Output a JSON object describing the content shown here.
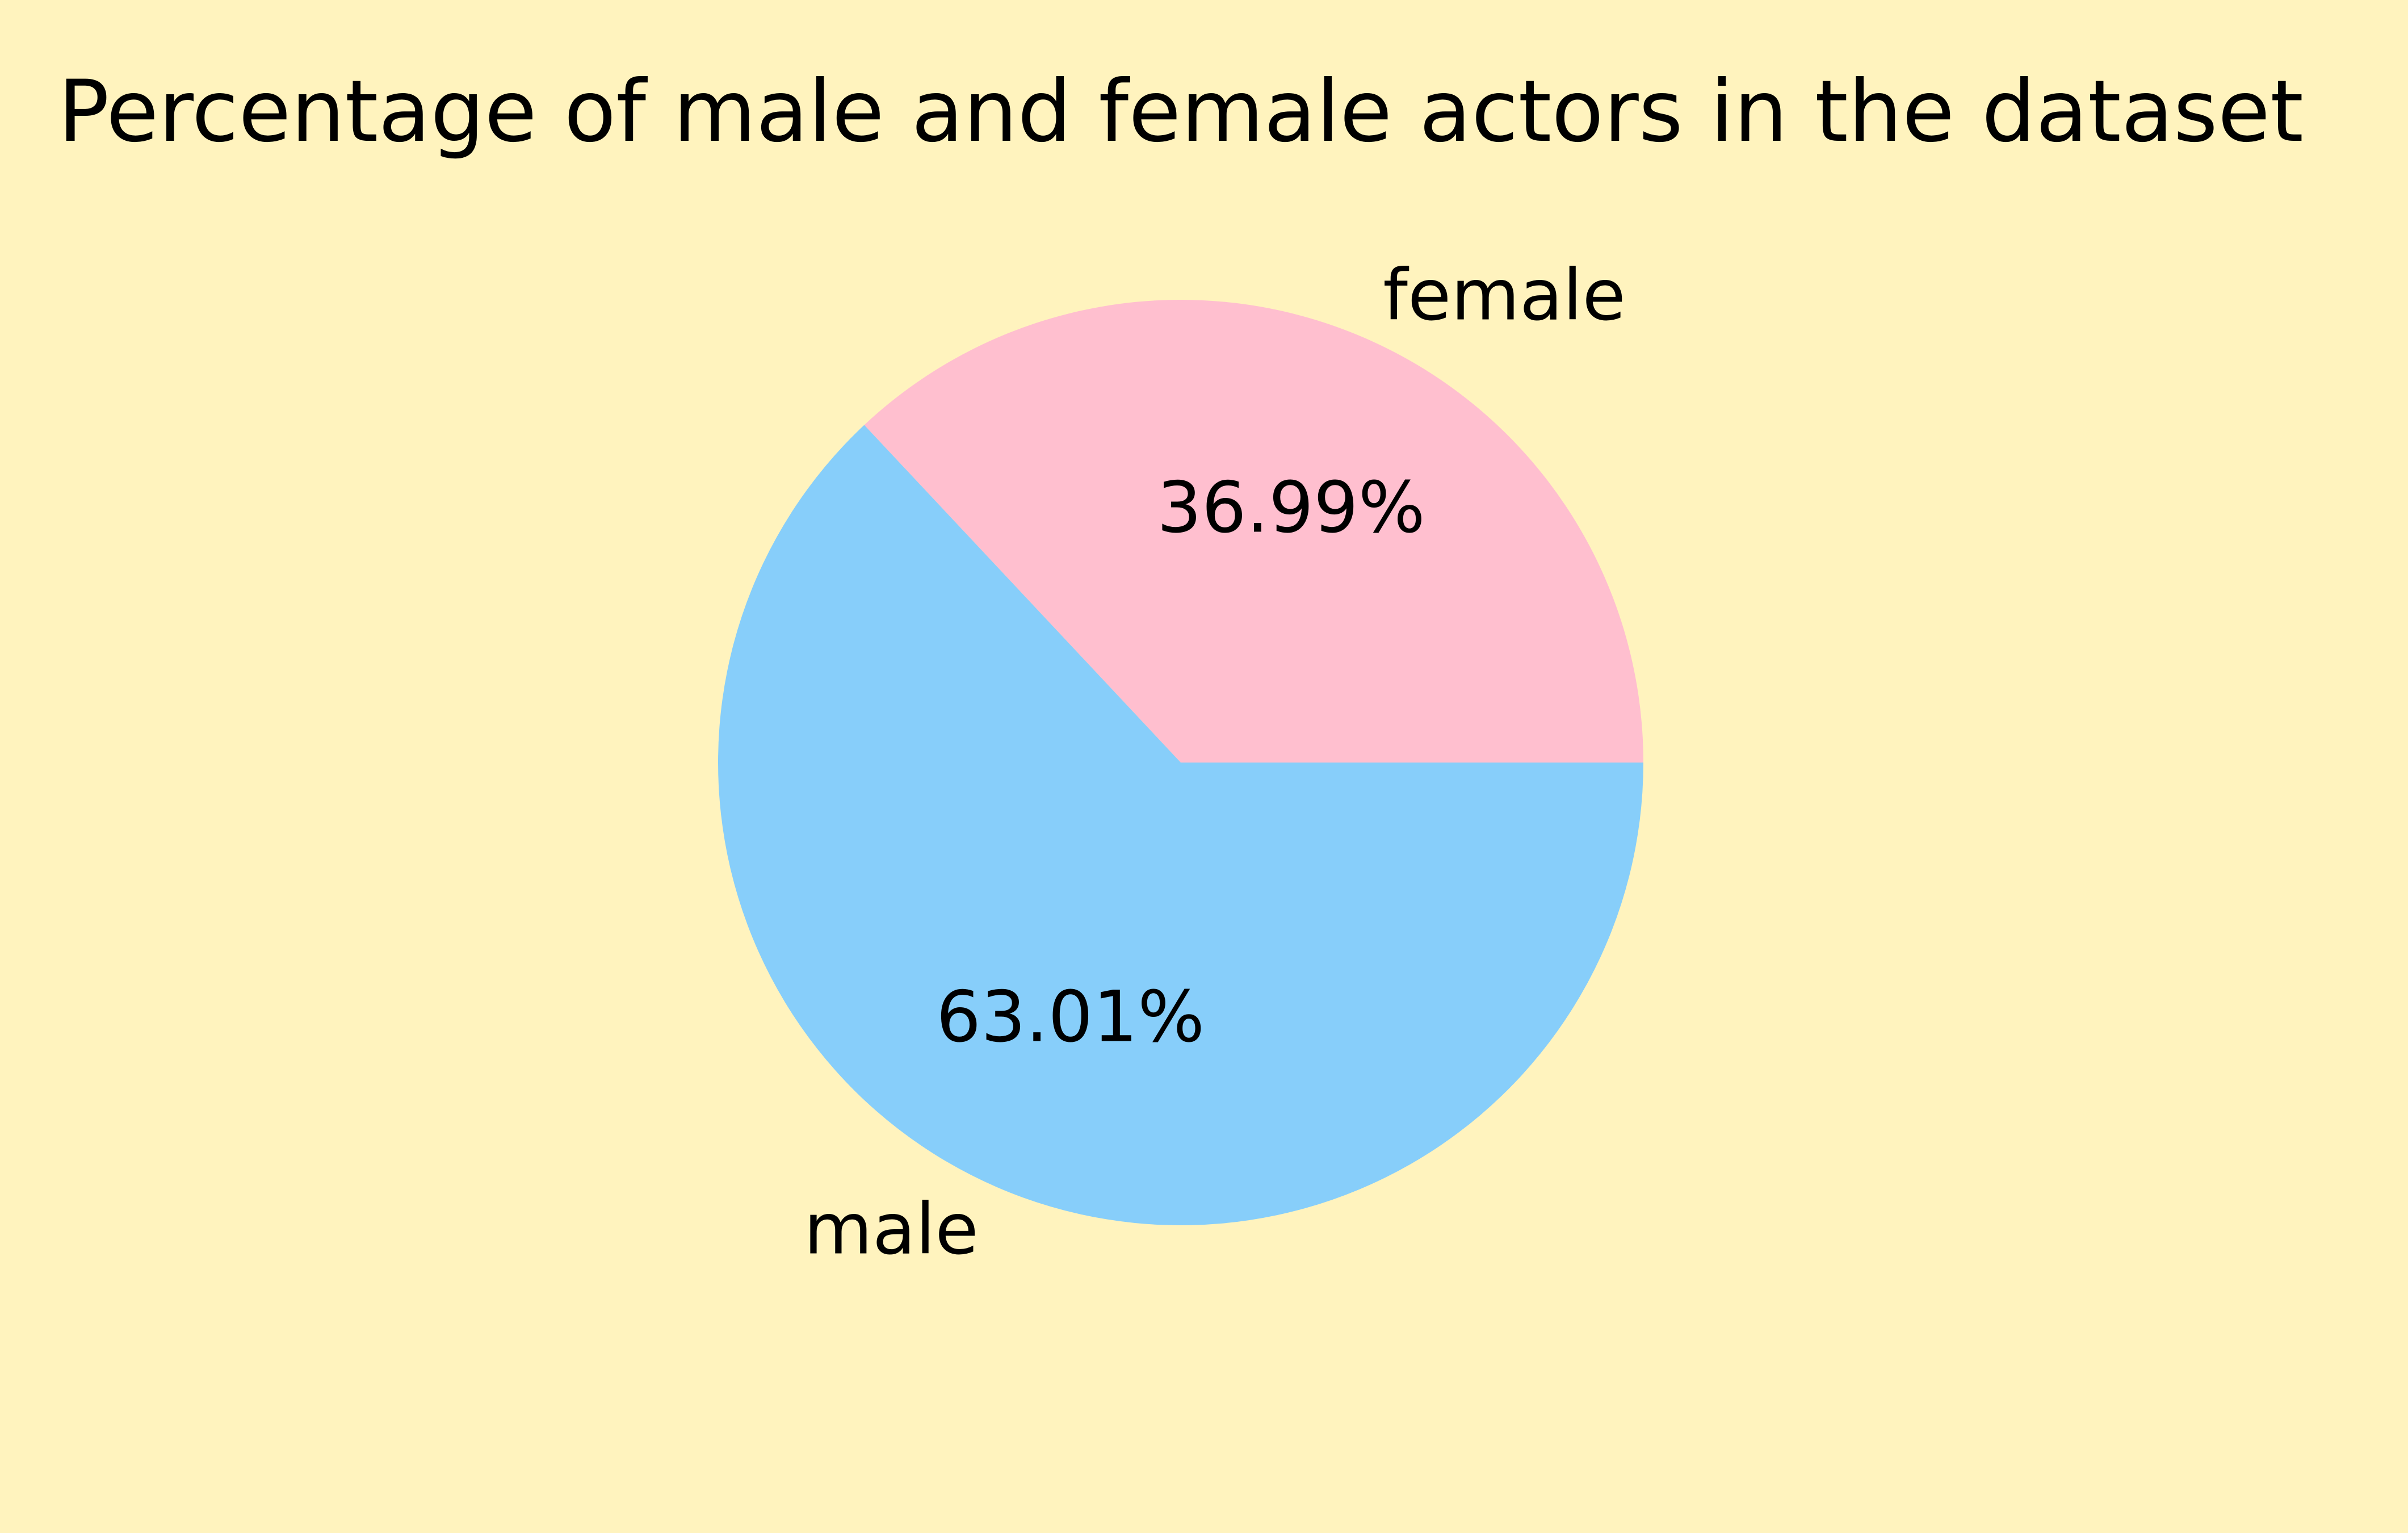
{
  "chart_data": {
    "type": "pie",
    "title": "Percentage of male and female actors in the dataset",
    "labels": [
      "female",
      "male"
    ],
    "values": [
      36.99,
      63.01
    ],
    "value_labels": [
      "36.99%",
      "63.01%"
    ],
    "colors": [
      "#FFBFCF",
      "#87CEFA"
    ],
    "start_angle_deg": 0,
    "direction": "counterclockwise"
  },
  "theme": {
    "background": "#FFF3BE",
    "text_color": "#000000"
  }
}
